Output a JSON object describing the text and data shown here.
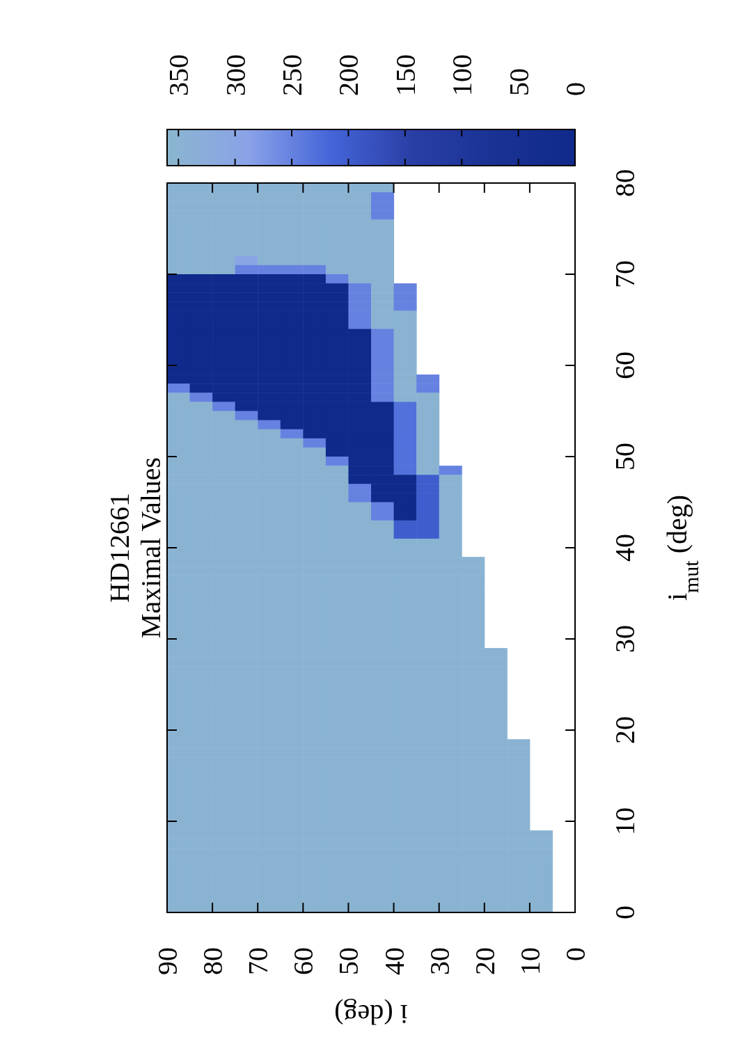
{
  "chart_data": {
    "type": "heatmap",
    "title": "HD12661",
    "subtitle": "Maximal Values",
    "xlabel": "i (deg)",
    "ylabel": "i$_{mut}$ (deg)",
    "xlim": [
      90,
      0
    ],
    "ylim": [
      0,
      80
    ],
    "xticks": [
      90,
      80,
      70,
      60,
      50,
      40,
      30,
      20,
      10,
      0
    ],
    "yticks": [
      0,
      10,
      20,
      30,
      40,
      50,
      60,
      70,
      80
    ],
    "clim": [
      0,
      360
    ],
    "cticks": [
      0,
      50,
      100,
      150,
      200,
      250,
      300,
      350
    ],
    "colors": [
      "#0f2a8a",
      "#1a3294",
      "#2a3fa6",
      "#4565d8",
      "#8aa2e8",
      "#8ab6cf"
    ],
    "cells": [
      [
        350,
        350,
        350,
        350,
        350,
        350,
        350,
        350,
        350,
        350,
        null,
        null,
        null,
        null,
        null,
        null,
        null,
        null
      ],
      [
        350,
        350,
        350,
        350,
        350,
        350,
        350,
        350,
        350,
        250,
        null,
        null,
        null,
        null,
        null,
        null,
        null,
        null
      ],
      [
        350,
        350,
        350,
        350,
        350,
        350,
        350,
        350,
        350,
        250,
        null,
        null,
        null,
        null,
        null,
        null,
        null,
        null
      ],
      [
        350,
        350,
        350,
        350,
        350,
        350,
        350,
        350,
        350,
        250,
        null,
        null,
        null,
        null,
        null,
        null,
        null,
        null
      ],
      [
        350,
        350,
        350,
        350,
        350,
        350,
        350,
        350,
        350,
        350,
        null,
        null,
        null,
        null,
        null,
        null,
        null,
        null
      ],
      [
        350,
        350,
        350,
        350,
        350,
        350,
        350,
        350,
        350,
        350,
        null,
        null,
        null,
        null,
        null,
        null,
        null,
        null
      ],
      [
        350,
        350,
        350,
        350,
        350,
        350,
        350,
        350,
        350,
        350,
        null,
        null,
        null,
        null,
        null,
        null,
        null,
        null
      ],
      [
        350,
        350,
        350,
        350,
        350,
        350,
        350,
        350,
        350,
        350,
        null,
        null,
        null,
        null,
        null,
        null,
        null,
        null
      ],
      [
        350,
        350,
        350,
        300,
        350,
        350,
        350,
        350,
        350,
        350,
        null,
        null,
        null,
        null,
        null,
        null,
        null,
        null
      ],
      [
        350,
        350,
        350,
        250,
        250,
        250,
        250,
        350,
        350,
        350,
        null,
        null,
        null,
        null,
        null,
        null,
        null,
        null
      ],
      [
        0,
        0,
        0,
        0,
        0,
        0,
        0,
        250,
        350,
        350,
        null,
        null,
        null,
        null,
        null,
        null,
        null,
        null
      ],
      [
        0,
        0,
        0,
        0,
        0,
        0,
        0,
        0,
        250,
        350,
        250,
        null,
        null,
        null,
        null,
        null,
        null,
        null
      ],
      [
        0,
        0,
        0,
        0,
        0,
        0,
        0,
        0,
        250,
        350,
        250,
        null,
        null,
        null,
        null,
        null,
        null,
        null
      ],
      [
        0,
        0,
        0,
        0,
        0,
        0,
        0,
        0,
        250,
        350,
        250,
        null,
        null,
        null,
        null,
        null,
        null,
        null
      ],
      [
        0,
        0,
        0,
        0,
        0,
        0,
        0,
        0,
        250,
        350,
        350,
        null,
        null,
        null,
        null,
        null,
        null,
        null
      ],
      [
        0,
        0,
        0,
        0,
        0,
        0,
        0,
        0,
        250,
        350,
        350,
        null,
        null,
        null,
        null,
        null,
        null,
        null
      ],
      [
        0,
        0,
        0,
        0,
        0,
        0,
        0,
        0,
        0,
        250,
        350,
        null,
        null,
        null,
        null,
        null,
        null,
        null
      ],
      [
        0,
        0,
        0,
        0,
        0,
        0,
        0,
        0,
        0,
        250,
        350,
        null,
        null,
        null,
        null,
        null,
        null,
        null
      ],
      [
        0,
        0,
        0,
        0,
        0,
        0,
        0,
        0,
        0,
        250,
        350,
        null,
        null,
        null,
        null,
        null,
        null,
        null
      ],
      [
        0,
        0,
        0,
        0,
        0,
        0,
        0,
        0,
        0,
        250,
        350,
        null,
        null,
        null,
        null,
        null,
        null,
        null
      ],
      [
        0,
        0,
        0,
        0,
        0,
        0,
        0,
        0,
        0,
        250,
        350,
        null,
        null,
        null,
        null,
        null,
        null,
        null
      ],
      [
        0,
        0,
        0,
        0,
        0,
        0,
        0,
        0,
        0,
        250,
        350,
        250,
        null,
        null,
        null,
        null,
        null,
        null
      ],
      [
        250,
        0,
        0,
        0,
        0,
        0,
        0,
        0,
        0,
        250,
        350,
        250,
        null,
        null,
        null,
        null,
        null,
        null
      ],
      [
        350,
        250,
        0,
        0,
        0,
        0,
        0,
        0,
        0,
        250,
        350,
        350,
        null,
        null,
        null,
        null,
        null,
        null
      ],
      [
        350,
        350,
        250,
        0,
        0,
        0,
        0,
        0,
        0,
        0,
        230,
        350,
        null,
        null,
        null,
        null,
        null,
        null
      ],
      [
        350,
        350,
        350,
        250,
        0,
        0,
        0,
        0,
        0,
        0,
        230,
        350,
        null,
        null,
        null,
        null,
        null,
        null
      ],
      [
        350,
        350,
        350,
        350,
        250,
        0,
        0,
        0,
        0,
        0,
        230,
        350,
        null,
        null,
        null,
        null,
        null,
        null
      ],
      [
        350,
        350,
        350,
        350,
        350,
        250,
        0,
        0,
        0,
        0,
        230,
        350,
        null,
        null,
        null,
        null,
        null,
        null
      ],
      [
        350,
        350,
        350,
        350,
        350,
        350,
        250,
        0,
        0,
        0,
        230,
        350,
        null,
        null,
        null,
        null,
        null,
        null
      ],
      [
        350,
        350,
        350,
        350,
        350,
        350,
        350,
        0,
        0,
        0,
        230,
        350,
        null,
        null,
        null,
        null,
        null,
        null
      ],
      [
        350,
        350,
        350,
        350,
        350,
        350,
        350,
        250,
        0,
        0,
        230,
        350,
        null,
        null,
        null,
        null,
        null,
        null
      ],
      [
        350,
        350,
        350,
        350,
        350,
        350,
        350,
        350,
        0,
        0,
        230,
        350,
        250,
        null,
        null,
        null,
        null,
        null
      ],
      [
        350,
        350,
        350,
        350,
        350,
        350,
        350,
        350,
        0,
        0,
        0,
        200,
        350,
        null,
        null,
        null,
        null,
        null
      ],
      [
        350,
        350,
        350,
        350,
        350,
        350,
        350,
        350,
        250,
        0,
        0,
        200,
        350,
        null,
        null,
        null,
        null,
        null
      ],
      [
        350,
        350,
        350,
        350,
        350,
        350,
        350,
        350,
        250,
        0,
        0,
        200,
        350,
        null,
        null,
        null,
        null,
        null
      ],
      [
        350,
        350,
        350,
        350,
        350,
        350,
        350,
        350,
        350,
        250,
        0,
        200,
        350,
        null,
        null,
        null,
        null,
        null
      ],
      [
        350,
        350,
        350,
        350,
        350,
        350,
        350,
        350,
        350,
        250,
        0,
        200,
        350,
        null,
        null,
        null,
        null,
        null
      ],
      [
        350,
        350,
        350,
        350,
        350,
        350,
        350,
        350,
        350,
        350,
        200,
        200,
        350,
        null,
        null,
        null,
        null,
        null
      ],
      [
        350,
        350,
        350,
        350,
        350,
        350,
        350,
        350,
        350,
        350,
        200,
        200,
        350,
        null,
        null,
        null,
        null,
        null
      ],
      [
        350,
        350,
        350,
        350,
        350,
        350,
        350,
        350,
        350,
        350,
        350,
        350,
        350,
        null,
        null,
        null,
        null,
        null
      ],
      [
        350,
        350,
        350,
        350,
        350,
        350,
        350,
        350,
        350,
        350,
        350,
        350,
        350,
        null,
        null,
        null,
        null,
        null
      ],
      [
        350,
        350,
        350,
        350,
        350,
        350,
        350,
        350,
        350,
        350,
        350,
        350,
        350,
        350,
        null,
        null,
        null,
        null
      ],
      [
        350,
        350,
        350,
        350,
        350,
        350,
        350,
        350,
        350,
        350,
        350,
        350,
        350,
        350,
        null,
        null,
        null,
        null
      ],
      [
        350,
        350,
        350,
        350,
        350,
        350,
        350,
        350,
        350,
        350,
        350,
        350,
        350,
        350,
        null,
        null,
        null,
        null
      ],
      [
        350,
        350,
        350,
        350,
        350,
        350,
        350,
        350,
        350,
        350,
        350,
        350,
        350,
        350,
        null,
        null,
        null,
        null
      ],
      [
        350,
        350,
        350,
        350,
        350,
        350,
        350,
        350,
        350,
        350,
        350,
        350,
        350,
        350,
        null,
        null,
        null,
        null
      ],
      [
        350,
        350,
        350,
        350,
        350,
        350,
        350,
        350,
        350,
        350,
        350,
        350,
        350,
        350,
        null,
        null,
        null,
        null
      ],
      [
        350,
        350,
        350,
        350,
        350,
        350,
        350,
        350,
        350,
        350,
        350,
        350,
        350,
        350,
        null,
        null,
        null,
        null
      ],
      [
        350,
        350,
        350,
        350,
        350,
        350,
        350,
        350,
        350,
        350,
        350,
        350,
        350,
        350,
        null,
        null,
        null,
        null
      ],
      [
        350,
        350,
        350,
        350,
        350,
        350,
        350,
        350,
        350,
        350,
        350,
        350,
        350,
        350,
        null,
        null,
        null,
        null
      ],
      [
        350,
        350,
        350,
        350,
        350,
        350,
        350,
        350,
        350,
        350,
        350,
        350,
        350,
        350,
        null,
        null,
        null,
        null
      ],
      [
        350,
        350,
        350,
        350,
        350,
        350,
        350,
        350,
        350,
        350,
        350,
        350,
        350,
        350,
        350,
        null,
        null,
        null
      ],
      [
        350,
        350,
        350,
        350,
        350,
        350,
        350,
        350,
        350,
        350,
        350,
        350,
        350,
        350,
        350,
        null,
        null,
        null
      ],
      [
        350,
        350,
        350,
        350,
        350,
        350,
        350,
        350,
        350,
        350,
        350,
        350,
        350,
        350,
        350,
        null,
        null,
        null
      ],
      [
        350,
        350,
        350,
        350,
        350,
        350,
        350,
        350,
        350,
        350,
        350,
        350,
        350,
        350,
        350,
        null,
        null,
        null
      ],
      [
        350,
        350,
        350,
        350,
        350,
        350,
        350,
        350,
        350,
        350,
        350,
        350,
        350,
        350,
        350,
        null,
        null,
        null
      ],
      [
        350,
        350,
        350,
        350,
        350,
        350,
        350,
        350,
        350,
        350,
        350,
        350,
        350,
        350,
        350,
        null,
        null,
        null
      ],
      [
        350,
        350,
        350,
        350,
        350,
        350,
        350,
        350,
        350,
        350,
        350,
        350,
        350,
        350,
        350,
        null,
        null,
        null
      ],
      [
        350,
        350,
        350,
        350,
        350,
        350,
        350,
        350,
        350,
        350,
        350,
        350,
        350,
        350,
        350,
        null,
        null,
        null
      ],
      [
        350,
        350,
        350,
        350,
        350,
        350,
        350,
        350,
        350,
        350,
        350,
        350,
        350,
        350,
        350,
        null,
        null,
        null
      ],
      [
        350,
        350,
        350,
        350,
        350,
        350,
        350,
        350,
        350,
        350,
        350,
        350,
        350,
        350,
        350,
        null,
        null,
        null
      ],
      [
        350,
        350,
        350,
        350,
        350,
        350,
        350,
        350,
        350,
        350,
        350,
        350,
        350,
        350,
        350,
        350,
        null,
        null
      ],
      [
        350,
        350,
        350,
        350,
        350,
        350,
        350,
        350,
        350,
        350,
        350,
        350,
        350,
        350,
        350,
        350,
        null,
        null
      ],
      [
        350,
        350,
        350,
        350,
        350,
        350,
        350,
        350,
        350,
        350,
        350,
        350,
        350,
        350,
        350,
        350,
        null,
        null
      ],
      [
        350,
        350,
        350,
        350,
        350,
        350,
        350,
        350,
        350,
        350,
        350,
        350,
        350,
        350,
        350,
        350,
        null,
        null
      ],
      [
        350,
        350,
        350,
        350,
        350,
        350,
        350,
        350,
        350,
        350,
        350,
        350,
        350,
        350,
        350,
        350,
        null,
        null
      ],
      [
        350,
        350,
        350,
        350,
        350,
        350,
        350,
        350,
        350,
        350,
        350,
        350,
        350,
        350,
        350,
        350,
        null,
        null
      ],
      [
        350,
        350,
        350,
        350,
        350,
        350,
        350,
        350,
        350,
        350,
        350,
        350,
        350,
        350,
        350,
        350,
        null,
        null
      ],
      [
        350,
        350,
        350,
        350,
        350,
        350,
        350,
        350,
        350,
        350,
        350,
        350,
        350,
        350,
        350,
        350,
        null,
        null
      ],
      [
        350,
        350,
        350,
        350,
        350,
        350,
        350,
        350,
        350,
        350,
        350,
        350,
        350,
        350,
        350,
        350,
        null,
        null
      ],
      [
        350,
        350,
        350,
        350,
        350,
        350,
        350,
        350,
        350,
        350,
        350,
        350,
        350,
        350,
        350,
        350,
        null,
        null
      ],
      [
        350,
        350,
        350,
        350,
        350,
        350,
        350,
        350,
        350,
        350,
        350,
        350,
        350,
        350,
        350,
        350,
        350,
        null
      ],
      [
        350,
        350,
        350,
        350,
        350,
        350,
        350,
        350,
        350,
        350,
        350,
        350,
        350,
        350,
        350,
        350,
        350,
        null
      ],
      [
        350,
        350,
        350,
        350,
        350,
        350,
        350,
        350,
        350,
        350,
        350,
        350,
        350,
        350,
        350,
        350,
        350,
        null
      ],
      [
        350,
        350,
        350,
        350,
        350,
        350,
        350,
        350,
        350,
        350,
        350,
        350,
        350,
        350,
        350,
        350,
        350,
        null
      ],
      [
        350,
        350,
        350,
        350,
        350,
        350,
        350,
        350,
        350,
        350,
        350,
        350,
        350,
        350,
        350,
        350,
        350,
        null
      ],
      [
        350,
        350,
        350,
        350,
        350,
        350,
        350,
        350,
        350,
        350,
        350,
        350,
        350,
        350,
        350,
        350,
        350,
        null
      ],
      [
        350,
        350,
        350,
        350,
        350,
        350,
        350,
        350,
        350,
        350,
        350,
        350,
        350,
        350,
        350,
        350,
        350,
        null
      ],
      [
        350,
        350,
        350,
        350,
        350,
        350,
        350,
        350,
        350,
        350,
        350,
        350,
        350,
        350,
        350,
        350,
        350,
        null
      ],
      [
        350,
        350,
        350,
        350,
        350,
        350,
        350,
        350,
        350,
        350,
        350,
        350,
        350,
        350,
        350,
        350,
        350,
        null
      ]
    ]
  }
}
